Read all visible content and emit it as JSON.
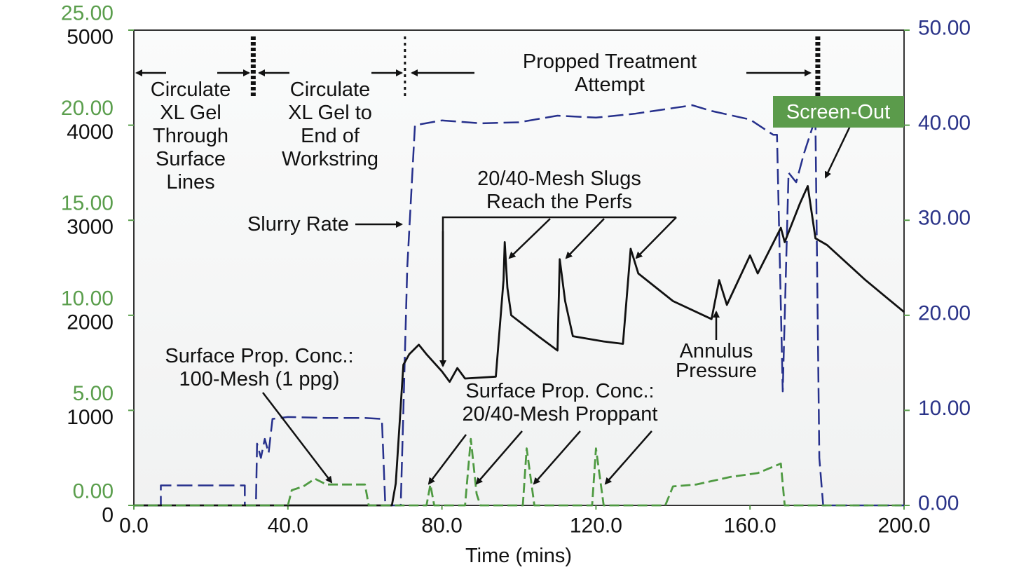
{
  "chart_data": {
    "type": "line",
    "xlabel": "Time (mins)",
    "xlim": [
      0,
      200
    ],
    "x_ticks": [
      "0.0",
      "40.0",
      "80.0",
      "120.0",
      "160.0",
      "200.0"
    ],
    "x_tick_values": [
      0,
      40,
      80,
      120,
      160,
      200
    ],
    "y_left_black": {
      "range": [
        0,
        5000
      ],
      "ticks": [
        "0",
        "1000",
        "2000",
        "3000",
        "4000",
        "5000"
      ]
    },
    "y_left_green": {
      "range": [
        0,
        25
      ],
      "ticks": [
        "0.00",
        "5.00",
        "10.00",
        "15.00",
        "20.00",
        "25.00"
      ]
    },
    "y_right_blue": {
      "range": [
        0,
        50
      ],
      "ticks": [
        "0.00",
        "10.00",
        "20.00",
        "30.00",
        "40.00",
        "50.00"
      ]
    },
    "grid": false,
    "colors": {
      "slurry_rate": "#26308c",
      "annulus_pressure": "#111111",
      "prop_conc": "#4f9a42",
      "screen_out_box": "#5b9b4b"
    },
    "series": [
      {
        "name": "Slurry Rate",
        "axis": "right",
        "style": "dashed",
        "x": [
          0,
          7,
          7,
          28.8,
          28.8,
          31.7,
          32,
          33,
          34,
          35,
          36,
          40,
          50,
          60,
          64.4,
          65.3,
          69.3,
          70,
          71,
          73,
          80,
          90,
          100,
          110,
          120,
          130,
          140,
          145,
          150,
          160,
          166,
          167,
          168.5,
          170,
          172,
          174,
          176.4,
          177,
          178,
          179,
          200
        ],
        "y": [
          0,
          0,
          2.1,
          2.1,
          0,
          0,
          6.5,
          5,
          7,
          5.5,
          9.1,
          9.3,
          9.2,
          9.2,
          9.1,
          0,
          0,
          10,
          25,
          40,
          40.5,
          40.2,
          40.3,
          41,
          40.8,
          41.2,
          41.8,
          42.1,
          41.5,
          40.6,
          39,
          39,
          12,
          35,
          34,
          37,
          40,
          40,
          5,
          0,
          0
        ]
      },
      {
        "name": "Annulus Pressure",
        "axis": "left-black",
        "x": [
          0,
          67,
          68,
          70,
          71.5,
          74,
          76,
          80,
          82,
          84,
          86,
          94,
          96,
          96.3,
          97,
          98,
          105,
          110,
          110.6,
          112,
          114,
          122,
          127,
          129,
          131,
          140,
          150,
          152,
          154,
          160,
          162,
          168,
          169,
          173,
          175,
          177,
          180,
          190,
          200
        ],
        "y": [
          0,
          0,
          230,
          1480,
          1590,
          1690,
          1590,
          1410,
          1300,
          1445,
          1335,
          1355,
          2370,
          2770,
          2290,
          2000,
          1780,
          1630,
          2590,
          2150,
          1780,
          1725,
          1700,
          2700,
          2440,
          2150,
          1960,
          2370,
          2110,
          2630,
          2440,
          2920,
          2770,
          3180,
          3360,
          2810,
          2740,
          2370,
          2035
        ]
      },
      {
        "name": "Surface Prop. Conc.",
        "axis": "left-green",
        "style": "dashed",
        "x": [
          0,
          40,
          41,
          44,
          47,
          50,
          60,
          61,
          76,
          77,
          78,
          86,
          87.5,
          89,
          90,
          101,
          102,
          104,
          119,
          120,
          122,
          138,
          140,
          146,
          155,
          162,
          168,
          169,
          200
        ],
        "y": [
          0,
          0,
          0.8,
          1.0,
          1.4,
          1.1,
          1.1,
          0,
          0,
          1.1,
          0,
          0,
          3.5,
          0.6,
          0,
          0,
          3.0,
          0,
          0,
          3.0,
          0,
          0,
          1.0,
          1.1,
          1.5,
          1.7,
          2.2,
          0,
          0
        ]
      }
    ],
    "stage_markers_x": [
      31,
      70.4,
      177.6
    ],
    "annotations": {
      "stage1": [
        "Circulate",
        "XL Gel",
        "Through",
        "Surface",
        "Lines"
      ],
      "stage2": [
        "Circulate",
        "XL Gel to",
        "End of",
        "Workstring"
      ],
      "stage3": [
        "Propped Treatment",
        "Attempt"
      ],
      "slurry_rate": "Slurry Rate",
      "slugs": [
        "20/40-Mesh Slugs",
        "Reach the Perfs"
      ],
      "prop100": [
        "Surface Prop. Conc.:",
        "100-Mesh (1 ppg)"
      ],
      "prop2040": [
        "Surface Prop. Conc.:",
        "20/40-Mesh Proppant"
      ],
      "annulus": [
        "Annulus",
        "Pressure"
      ],
      "screen_out": "Screen-Out"
    }
  }
}
